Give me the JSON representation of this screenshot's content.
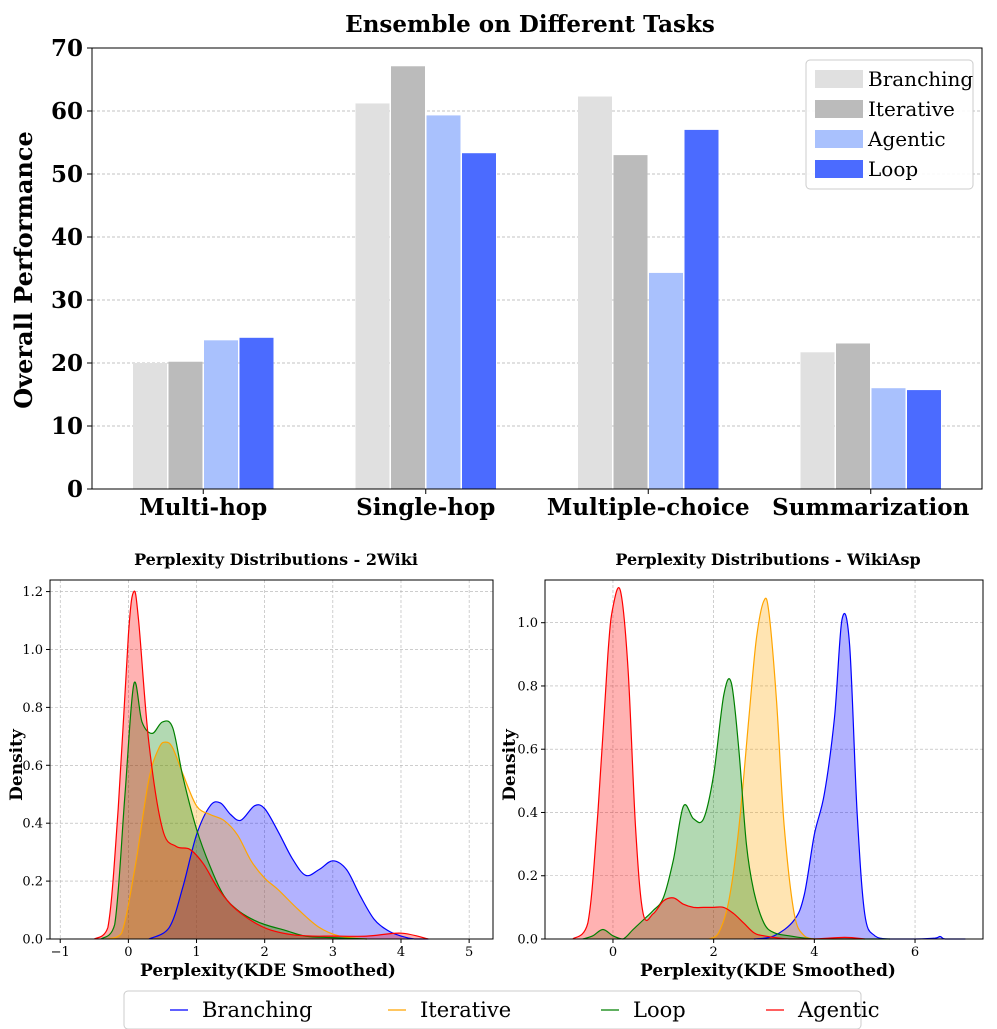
{
  "chart_data": [
    {
      "type": "bar",
      "title": "Ensemble on Different Tasks",
      "xlabel": "",
      "ylabel": "Overall Performance",
      "categories": [
        "Multi-hop",
        "Single-hop",
        "Multiple-choice",
        "Summarization"
      ],
      "ylim": [
        0,
        70
      ],
      "yticks": [
        0,
        10,
        20,
        30,
        40,
        50,
        60,
        70
      ],
      "grid": true,
      "legend": "top-right",
      "series": [
        {
          "name": "Branching",
          "color": "#e0e0e0",
          "values": [
            20.0,
            61.2,
            62.3,
            21.7
          ]
        },
        {
          "name": "Iterative",
          "color": "#bbbbbb",
          "values": [
            20.2,
            67.1,
            53.0,
            23.1
          ]
        },
        {
          "name": "Agentic",
          "color": "#a9c1fd",
          "values": [
            23.6,
            59.3,
            34.3,
            16.0
          ]
        },
        {
          "name": "Loop",
          "color": "#4b6bff",
          "values": [
            24.0,
            53.3,
            57.0,
            15.7
          ]
        }
      ]
    },
    {
      "type": "area",
      "title": "Perplexity Distributions - 2Wiki",
      "xlabel": "Perplexity(KDE Smoothed)",
      "ylabel": "Density",
      "xlim": [
        -1.15,
        5.35
      ],
      "ylim": [
        0,
        1.24
      ],
      "xticks": [
        -1,
        0,
        1,
        2,
        3,
        4,
        5
      ],
      "yticks": [
        0.0,
        0.2,
        0.4,
        0.6,
        0.8,
        1.0,
        1.2
      ],
      "grid": true,
      "series": [
        {
          "name": "Branching",
          "color": "#0000ff",
          "x": [
            0.3,
            0.6,
            0.8,
            1.0,
            1.2,
            1.35,
            1.5,
            1.65,
            1.85,
            2.0,
            2.2,
            2.4,
            2.6,
            2.8,
            3.0,
            3.2,
            3.4,
            3.6,
            3.8,
            4.0,
            4.2,
            4.4
          ],
          "y": [
            0.0,
            0.04,
            0.18,
            0.36,
            0.46,
            0.47,
            0.43,
            0.41,
            0.46,
            0.45,
            0.37,
            0.28,
            0.22,
            0.24,
            0.27,
            0.24,
            0.15,
            0.07,
            0.03,
            0.01,
            0.0,
            0.0
          ]
        },
        {
          "name": "Iterative",
          "color": "#ffa500",
          "x": [
            -0.3,
            -0.1,
            0.1,
            0.3,
            0.45,
            0.55,
            0.65,
            0.8,
            1.0,
            1.2,
            1.4,
            1.6,
            1.8,
            2.0,
            2.2,
            2.5,
            2.8,
            3.1,
            3.5
          ],
          "y": [
            0.0,
            0.02,
            0.25,
            0.55,
            0.66,
            0.68,
            0.66,
            0.57,
            0.46,
            0.43,
            0.41,
            0.36,
            0.27,
            0.21,
            0.17,
            0.1,
            0.04,
            0.01,
            0.0
          ]
        },
        {
          "name": "Loop",
          "color": "#008000",
          "x": [
            -0.4,
            -0.2,
            -0.05,
            0.08,
            0.2,
            0.35,
            0.5,
            0.65,
            0.8,
            1.0,
            1.2,
            1.4,
            1.6,
            1.8,
            2.0,
            2.3,
            2.6,
            3.0,
            3.5
          ],
          "y": [
            0.0,
            0.05,
            0.5,
            0.88,
            0.75,
            0.71,
            0.75,
            0.73,
            0.56,
            0.38,
            0.25,
            0.15,
            0.1,
            0.07,
            0.05,
            0.03,
            0.01,
            0.005,
            0.0
          ]
        },
        {
          "name": "Agentic",
          "color": "#ff0000",
          "x": [
            -0.5,
            -0.3,
            -0.15,
            0.0,
            0.08,
            0.15,
            0.3,
            0.5,
            0.7,
            0.9,
            1.1,
            1.3,
            1.5,
            1.7,
            1.9,
            2.1,
            2.4,
            2.7,
            3.0,
            3.5,
            4.0,
            4.4
          ],
          "y": [
            0.0,
            0.04,
            0.45,
            1.05,
            1.2,
            1.1,
            0.68,
            0.38,
            0.32,
            0.31,
            0.26,
            0.18,
            0.12,
            0.08,
            0.05,
            0.03,
            0.015,
            0.01,
            0.01,
            0.01,
            0.02,
            0.0
          ]
        }
      ]
    },
    {
      "type": "area",
      "title": "Perplexity Distributions - WikiAsp",
      "xlabel": "Perplexity(KDE Smoothed)",
      "ylabel": "Density",
      "xlim": [
        -1.35,
        7.35
      ],
      "ylim": [
        0,
        1.135
      ],
      "xticks": [
        0,
        2,
        4,
        6
      ],
      "yticks": [
        0.0,
        0.2,
        0.4,
        0.6,
        0.8,
        1.0
      ],
      "grid": true,
      "series": [
        {
          "name": "Branching",
          "color": "#0000ff",
          "x": [
            2.8,
            3.2,
            3.6,
            3.8,
            4.0,
            4.2,
            4.4,
            4.55,
            4.7,
            4.85,
            5.0,
            5.2,
            5.5,
            6.0,
            6.4,
            6.5,
            6.6,
            7.0
          ],
          "y": [
            0.0,
            0.01,
            0.06,
            0.14,
            0.33,
            0.46,
            0.7,
            1.01,
            0.93,
            0.4,
            0.08,
            0.01,
            0.0,
            0.0,
            0.003,
            0.008,
            0.0,
            0.0
          ]
        },
        {
          "name": "Iterative",
          "color": "#ffa500",
          "x": [
            1.9,
            2.1,
            2.3,
            2.5,
            2.7,
            2.85,
            3.0,
            3.1,
            3.25,
            3.4,
            3.6,
            3.8,
            4.0
          ],
          "y": [
            0.0,
            0.02,
            0.12,
            0.35,
            0.7,
            0.95,
            1.07,
            1.03,
            0.75,
            0.36,
            0.08,
            0.01,
            0.0
          ]
        },
        {
          "name": "Loop",
          "color": "#008000",
          "x": [
            -0.6,
            -0.4,
            -0.2,
            0.0,
            0.2,
            0.4,
            0.6,
            0.8,
            1.0,
            1.2,
            1.4,
            1.6,
            1.8,
            2.0,
            2.2,
            2.35,
            2.5,
            2.65,
            2.8,
            3.0,
            3.2,
            3.5,
            4.0,
            4.5,
            5.5
          ],
          "y": [
            0.0,
            0.01,
            0.03,
            0.01,
            0.0,
            0.03,
            0.06,
            0.09,
            0.13,
            0.25,
            0.42,
            0.38,
            0.38,
            0.52,
            0.77,
            0.81,
            0.6,
            0.3,
            0.15,
            0.05,
            0.02,
            0.01,
            0.0,
            0.0,
            0.0
          ]
        },
        {
          "name": "Agentic",
          "color": "#ff0000",
          "x": [
            -0.8,
            -0.5,
            -0.3,
            -0.1,
            0.0,
            0.15,
            0.3,
            0.45,
            0.6,
            0.8,
            1.0,
            1.2,
            1.4,
            1.6,
            1.8,
            2.0,
            2.2,
            2.4,
            2.6,
            2.8,
            3.0,
            3.5,
            4.0,
            4.6,
            5.0
          ],
          "y": [
            0.0,
            0.05,
            0.4,
            0.9,
            1.05,
            1.1,
            0.85,
            0.35,
            0.08,
            0.08,
            0.12,
            0.13,
            0.11,
            0.1,
            0.1,
            0.1,
            0.1,
            0.08,
            0.05,
            0.02,
            0.01,
            0.0,
            0.0,
            0.005,
            0.0
          ]
        }
      ]
    }
  ],
  "legend_bottom": {
    "items": [
      {
        "label": "Branching",
        "color": "#0000ff"
      },
      {
        "label": "Iterative",
        "color": "#ffa500"
      },
      {
        "label": "Loop",
        "color": "#008000"
      },
      {
        "label": "Agentic",
        "color": "#ff0000"
      }
    ]
  }
}
